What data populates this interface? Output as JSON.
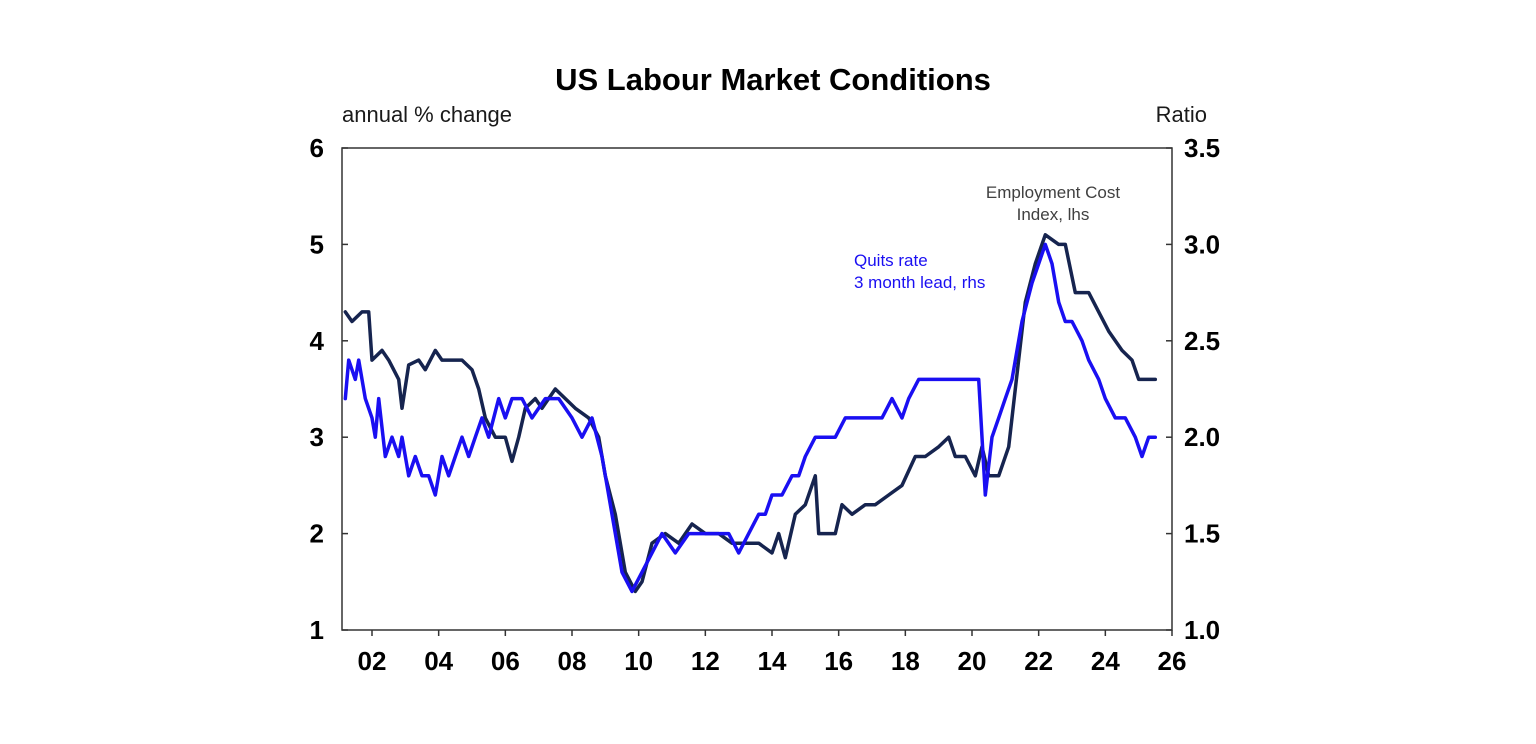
{
  "chart_data": {
    "type": "line",
    "title": "US Labour Market Conditions",
    "ylabel_left": "annual % change",
    "ylabel_right": "Ratio",
    "x_range": [
      2001.1,
      2026.0
    ],
    "x_ticks": [
      2002,
      2004,
      2006,
      2008,
      2010,
      2012,
      2014,
      2016,
      2018,
      2020,
      2022,
      2024,
      2026
    ],
    "x_tick_labels": [
      "02",
      "04",
      "06",
      "08",
      "10",
      "12",
      "14",
      "16",
      "18",
      "20",
      "22",
      "24",
      "26"
    ],
    "ylim_left": [
      1,
      6
    ],
    "yticks_left": [
      "1",
      "2",
      "3",
      "4",
      "5",
      "6"
    ],
    "ylim_right": [
      1.0,
      3.5
    ],
    "yticks_right": [
      "1.0",
      "1.5",
      "2.0",
      "2.5",
      "3.0",
      "3.5"
    ],
    "grid": false,
    "series": [
      {
        "name": "Employment Cost Index, lhs",
        "axis": "left",
        "color": "#16244f",
        "annotation": [
          "Employment Cost",
          "Index, lhs"
        ],
        "points": [
          [
            2001.2,
            4.3
          ],
          [
            2001.4,
            4.2
          ],
          [
            2001.7,
            4.3
          ],
          [
            2001.9,
            4.3
          ],
          [
            2002.0,
            3.8
          ],
          [
            2002.3,
            3.9
          ],
          [
            2002.5,
            3.8
          ],
          [
            2002.8,
            3.6
          ],
          [
            2002.9,
            3.3
          ],
          [
            2003.1,
            3.75
          ],
          [
            2003.4,
            3.8
          ],
          [
            2003.6,
            3.7
          ],
          [
            2003.9,
            3.9
          ],
          [
            2004.1,
            3.8
          ],
          [
            2004.4,
            3.8
          ],
          [
            2004.7,
            3.8
          ],
          [
            2005.0,
            3.7
          ],
          [
            2005.2,
            3.5
          ],
          [
            2005.4,
            3.2
          ],
          [
            2005.7,
            3.0
          ],
          [
            2006.0,
            3.0
          ],
          [
            2006.2,
            2.75
          ],
          [
            2006.4,
            3.0
          ],
          [
            2006.6,
            3.3
          ],
          [
            2006.9,
            3.4
          ],
          [
            2007.1,
            3.3
          ],
          [
            2007.5,
            3.5
          ],
          [
            2007.8,
            3.4
          ],
          [
            2008.1,
            3.3
          ],
          [
            2008.5,
            3.2
          ],
          [
            2008.8,
            3.0
          ],
          [
            2009.0,
            2.6
          ],
          [
            2009.3,
            2.2
          ],
          [
            2009.6,
            1.6
          ],
          [
            2009.9,
            1.4
          ],
          [
            2010.1,
            1.5
          ],
          [
            2010.4,
            1.9
          ],
          [
            2010.8,
            2.0
          ],
          [
            2011.2,
            1.9
          ],
          [
            2011.6,
            2.1
          ],
          [
            2012.0,
            2.0
          ],
          [
            2012.4,
            2.0
          ],
          [
            2012.8,
            1.9
          ],
          [
            2013.2,
            1.9
          ],
          [
            2013.6,
            1.9
          ],
          [
            2014.0,
            1.8
          ],
          [
            2014.2,
            2.0
          ],
          [
            2014.4,
            1.75
          ],
          [
            2014.7,
            2.2
          ],
          [
            2015.0,
            2.3
          ],
          [
            2015.3,
            2.6
          ],
          [
            2015.4,
            2.0
          ],
          [
            2015.9,
            2.0
          ],
          [
            2016.1,
            2.3
          ],
          [
            2016.4,
            2.2
          ],
          [
            2016.8,
            2.3
          ],
          [
            2017.1,
            2.3
          ],
          [
            2017.5,
            2.4
          ],
          [
            2017.9,
            2.5
          ],
          [
            2018.3,
            2.8
          ],
          [
            2018.6,
            2.8
          ],
          [
            2019.0,
            2.9
          ],
          [
            2019.3,
            3.0
          ],
          [
            2019.5,
            2.8
          ],
          [
            2019.8,
            2.8
          ],
          [
            2020.1,
            2.6
          ],
          [
            2020.3,
            2.9
          ],
          [
            2020.5,
            2.6
          ],
          [
            2020.8,
            2.6
          ],
          [
            2021.1,
            2.9
          ],
          [
            2021.3,
            3.5
          ],
          [
            2021.6,
            4.4
          ],
          [
            2021.9,
            4.8
          ],
          [
            2022.2,
            5.1
          ],
          [
            2022.6,
            5.0
          ],
          [
            2022.8,
            5.0
          ],
          [
            2023.1,
            4.5
          ],
          [
            2023.5,
            4.5
          ],
          [
            2023.8,
            4.3
          ],
          [
            2024.1,
            4.1
          ],
          [
            2024.5,
            3.9
          ],
          [
            2024.8,
            3.8
          ],
          [
            2025.0,
            3.6
          ],
          [
            2025.3,
            3.6
          ],
          [
            2025.5,
            3.6
          ]
        ]
      },
      {
        "name": "Quits rate 3 month lead, rhs",
        "axis": "right",
        "color": "#1a0ff2",
        "annotation": [
          "Quits rate",
          "3 month lead, rhs"
        ],
        "points": [
          [
            2001.2,
            2.2
          ],
          [
            2001.3,
            2.4
          ],
          [
            2001.5,
            2.3
          ],
          [
            2001.6,
            2.4
          ],
          [
            2001.8,
            2.2
          ],
          [
            2002.0,
            2.1
          ],
          [
            2002.1,
            2.0
          ],
          [
            2002.2,
            2.2
          ],
          [
            2002.4,
            1.9
          ],
          [
            2002.6,
            2.0
          ],
          [
            2002.8,
            1.9
          ],
          [
            2002.9,
            2.0
          ],
          [
            2003.1,
            1.8
          ],
          [
            2003.3,
            1.9
          ],
          [
            2003.5,
            1.8
          ],
          [
            2003.7,
            1.8
          ],
          [
            2003.9,
            1.7
          ],
          [
            2004.1,
            1.9
          ],
          [
            2004.3,
            1.8
          ],
          [
            2004.5,
            1.9
          ],
          [
            2004.7,
            2.0
          ],
          [
            2004.9,
            1.9
          ],
          [
            2005.1,
            2.0
          ],
          [
            2005.3,
            2.1
          ],
          [
            2005.5,
            2.0
          ],
          [
            2005.8,
            2.2
          ],
          [
            2006.0,
            2.1
          ],
          [
            2006.2,
            2.2
          ],
          [
            2006.5,
            2.2
          ],
          [
            2006.8,
            2.1
          ],
          [
            2007.2,
            2.2
          ],
          [
            2007.6,
            2.2
          ],
          [
            2008.0,
            2.1
          ],
          [
            2008.3,
            2.0
          ],
          [
            2008.6,
            2.1
          ],
          [
            2008.9,
            1.9
          ],
          [
            2009.2,
            1.6
          ],
          [
            2009.5,
            1.3
          ],
          [
            2009.8,
            1.2
          ],
          [
            2010.1,
            1.3
          ],
          [
            2010.4,
            1.4
          ],
          [
            2010.7,
            1.5
          ],
          [
            2011.1,
            1.4
          ],
          [
            2011.5,
            1.5
          ],
          [
            2011.9,
            1.5
          ],
          [
            2012.3,
            1.5
          ],
          [
            2012.7,
            1.5
          ],
          [
            2013.0,
            1.4
          ],
          [
            2013.3,
            1.5
          ],
          [
            2013.6,
            1.6
          ],
          [
            2013.8,
            1.6
          ],
          [
            2014.0,
            1.7
          ],
          [
            2014.3,
            1.7
          ],
          [
            2014.6,
            1.8
          ],
          [
            2014.8,
            1.8
          ],
          [
            2015.0,
            1.9
          ],
          [
            2015.3,
            2.0
          ],
          [
            2015.6,
            2.0
          ],
          [
            2015.9,
            2.0
          ],
          [
            2016.2,
            2.1
          ],
          [
            2016.5,
            2.1
          ],
          [
            2016.8,
            2.1
          ],
          [
            2017.0,
            2.1
          ],
          [
            2017.3,
            2.1
          ],
          [
            2017.6,
            2.2
          ],
          [
            2017.9,
            2.1
          ],
          [
            2018.1,
            2.2
          ],
          [
            2018.4,
            2.3
          ],
          [
            2018.7,
            2.3
          ],
          [
            2019.0,
            2.3
          ],
          [
            2019.3,
            2.3
          ],
          [
            2019.6,
            2.3
          ],
          [
            2020.0,
            2.3
          ],
          [
            2020.2,
            2.3
          ],
          [
            2020.4,
            1.7
          ],
          [
            2020.6,
            2.0
          ],
          [
            2020.8,
            2.1
          ],
          [
            2021.0,
            2.2
          ],
          [
            2021.2,
            2.3
          ],
          [
            2021.5,
            2.6
          ],
          [
            2021.8,
            2.8
          ],
          [
            2022.0,
            2.9
          ],
          [
            2022.2,
            3.0
          ],
          [
            2022.4,
            2.9
          ],
          [
            2022.6,
            2.7
          ],
          [
            2022.8,
            2.6
          ],
          [
            2023.0,
            2.6
          ],
          [
            2023.3,
            2.5
          ],
          [
            2023.5,
            2.4
          ],
          [
            2023.8,
            2.3
          ],
          [
            2024.0,
            2.2
          ],
          [
            2024.3,
            2.1
          ],
          [
            2024.6,
            2.1
          ],
          [
            2024.9,
            2.0
          ],
          [
            2025.1,
            1.9
          ],
          [
            2025.3,
            2.0
          ],
          [
            2025.5,
            2.0
          ]
        ]
      }
    ]
  }
}
